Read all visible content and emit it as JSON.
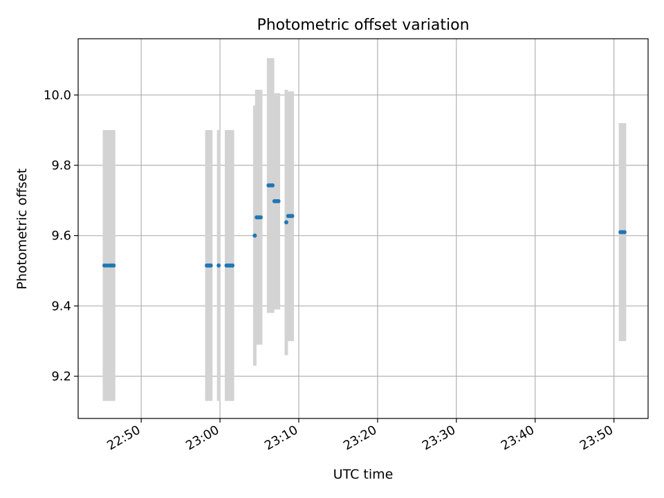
{
  "chart_data": {
    "type": "scatter",
    "title": "Photometric offset variation",
    "xlabel": "UTC time",
    "ylabel": "Photometric offset",
    "xlim": [
      "22:42",
      "23:54:20"
    ],
    "ylim": [
      9.08,
      10.16
    ],
    "xticks": [
      "22:50",
      "23:00",
      "23:10",
      "23:20",
      "23:30",
      "23:40",
      "23:50"
    ],
    "yticks": [
      "9.2",
      "9.4",
      "9.6",
      "9.8",
      "10.0"
    ],
    "grid": true,
    "colors": {
      "points": "#1f77b4",
      "errorbars": "#d3d3d3",
      "grid": "#b0b0b0"
    },
    "points": [
      {
        "x": "22:45:20",
        "y": 9.515,
        "ylow": 9.13,
        "yhigh": 9.9
      },
      {
        "x": "22:45:40",
        "y": 9.515,
        "ylow": 9.13,
        "yhigh": 9.9
      },
      {
        "x": "22:46:00",
        "y": 9.515,
        "ylow": 9.13,
        "yhigh": 9.9
      },
      {
        "x": "22:46:15",
        "y": 9.515,
        "ylow": 9.13,
        "yhigh": 9.9
      },
      {
        "x": "22:46:30",
        "y": 9.515,
        "ylow": 9.13,
        "yhigh": 9.9
      },
      {
        "x": "22:58:20",
        "y": 9.515,
        "ylow": 9.13,
        "yhigh": 9.9
      },
      {
        "x": "22:58:35",
        "y": 9.515,
        "ylow": 9.13,
        "yhigh": 9.9
      },
      {
        "x": "22:58:50",
        "y": 9.515,
        "ylow": 9.13,
        "yhigh": 9.9
      },
      {
        "x": "22:59:50",
        "y": 9.515,
        "ylow": 9.13,
        "yhigh": 9.9
      },
      {
        "x": "23:00:50",
        "y": 9.515,
        "ylow": 9.13,
        "yhigh": 9.9
      },
      {
        "x": "23:01:05",
        "y": 9.515,
        "ylow": 9.13,
        "yhigh": 9.9
      },
      {
        "x": "23:01:20",
        "y": 9.515,
        "ylow": 9.13,
        "yhigh": 9.9
      },
      {
        "x": "23:01:35",
        "y": 9.515,
        "ylow": 9.13,
        "yhigh": 9.9
      },
      {
        "x": "23:04:25",
        "y": 9.6,
        "ylow": 9.23,
        "yhigh": 9.97
      },
      {
        "x": "23:04:40",
        "y": 9.652,
        "ylow": 9.29,
        "yhigh": 10.015
      },
      {
        "x": "23:04:55",
        "y": 9.652,
        "ylow": 9.29,
        "yhigh": 10.015
      },
      {
        "x": "23:05:10",
        "y": 9.652,
        "ylow": 9.29,
        "yhigh": 10.015
      },
      {
        "x": "23:06:10",
        "y": 9.743,
        "ylow": 9.38,
        "yhigh": 10.105
      },
      {
        "x": "23:06:25",
        "y": 9.743,
        "ylow": 9.38,
        "yhigh": 10.105
      },
      {
        "x": "23:06:40",
        "y": 9.743,
        "ylow": 9.38,
        "yhigh": 10.105
      },
      {
        "x": "23:06:55",
        "y": 9.698,
        "ylow": 9.39,
        "yhigh": 10.005
      },
      {
        "x": "23:07:10",
        "y": 9.698,
        "ylow": 9.39,
        "yhigh": 10.005
      },
      {
        "x": "23:07:25",
        "y": 9.698,
        "ylow": 9.39,
        "yhigh": 10.005
      },
      {
        "x": "23:08:25",
        "y": 9.638,
        "ylow": 9.26,
        "yhigh": 10.015
      },
      {
        "x": "23:08:40",
        "y": 9.656,
        "ylow": 9.3,
        "yhigh": 10.01
      },
      {
        "x": "23:08:55",
        "y": 9.656,
        "ylow": 9.3,
        "yhigh": 10.01
      },
      {
        "x": "23:09:10",
        "y": 9.656,
        "ylow": 9.3,
        "yhigh": 10.01
      },
      {
        "x": "23:50:50",
        "y": 9.61,
        "ylow": 9.3,
        "yhigh": 9.92
      },
      {
        "x": "23:51:05",
        "y": 9.61,
        "ylow": 9.3,
        "yhigh": 9.92
      },
      {
        "x": "23:51:20",
        "y": 9.61,
        "ylow": 9.3,
        "yhigh": 9.92
      }
    ]
  }
}
